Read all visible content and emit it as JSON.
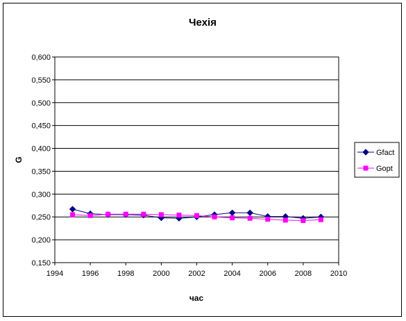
{
  "chart_data": {
    "type": "line",
    "title": "Чехія",
    "xlabel": "час",
    "ylabel": "G",
    "xlim": [
      1994,
      2010
    ],
    "ylim": [
      0.15,
      0.6
    ],
    "x_ticks": [
      "1994",
      "1996",
      "1998",
      "2000",
      "2002",
      "2004",
      "2006",
      "2008",
      "2010"
    ],
    "y_ticks": [
      "0,150",
      "0,200",
      "0,250",
      "0,300",
      "0,350",
      "0,400",
      "0,450",
      "0,500",
      "0,550",
      "0,600"
    ],
    "grid": "horizontal",
    "legend_position": "right",
    "x": [
      1995,
      1996,
      1997,
      1998,
      1999,
      2000,
      2001,
      2002,
      2003,
      2004,
      2005,
      2006,
      2007,
      2008,
      2009
    ],
    "series": [
      {
        "name": "Gfact",
        "color": "#000080",
        "marker": "diamond",
        "values": [
          0.267,
          0.257,
          0.255,
          0.255,
          0.254,
          0.248,
          0.247,
          0.25,
          0.255,
          0.259,
          0.259,
          0.251,
          0.251,
          0.247,
          0.25
        ]
      },
      {
        "name": "Gopt",
        "color": "#FF00FF",
        "marker": "square",
        "values": [
          0.255,
          0.253,
          0.256,
          0.256,
          0.256,
          0.255,
          0.254,
          0.253,
          0.25,
          0.248,
          0.247,
          0.245,
          0.243,
          0.242,
          0.244
        ]
      }
    ]
  }
}
